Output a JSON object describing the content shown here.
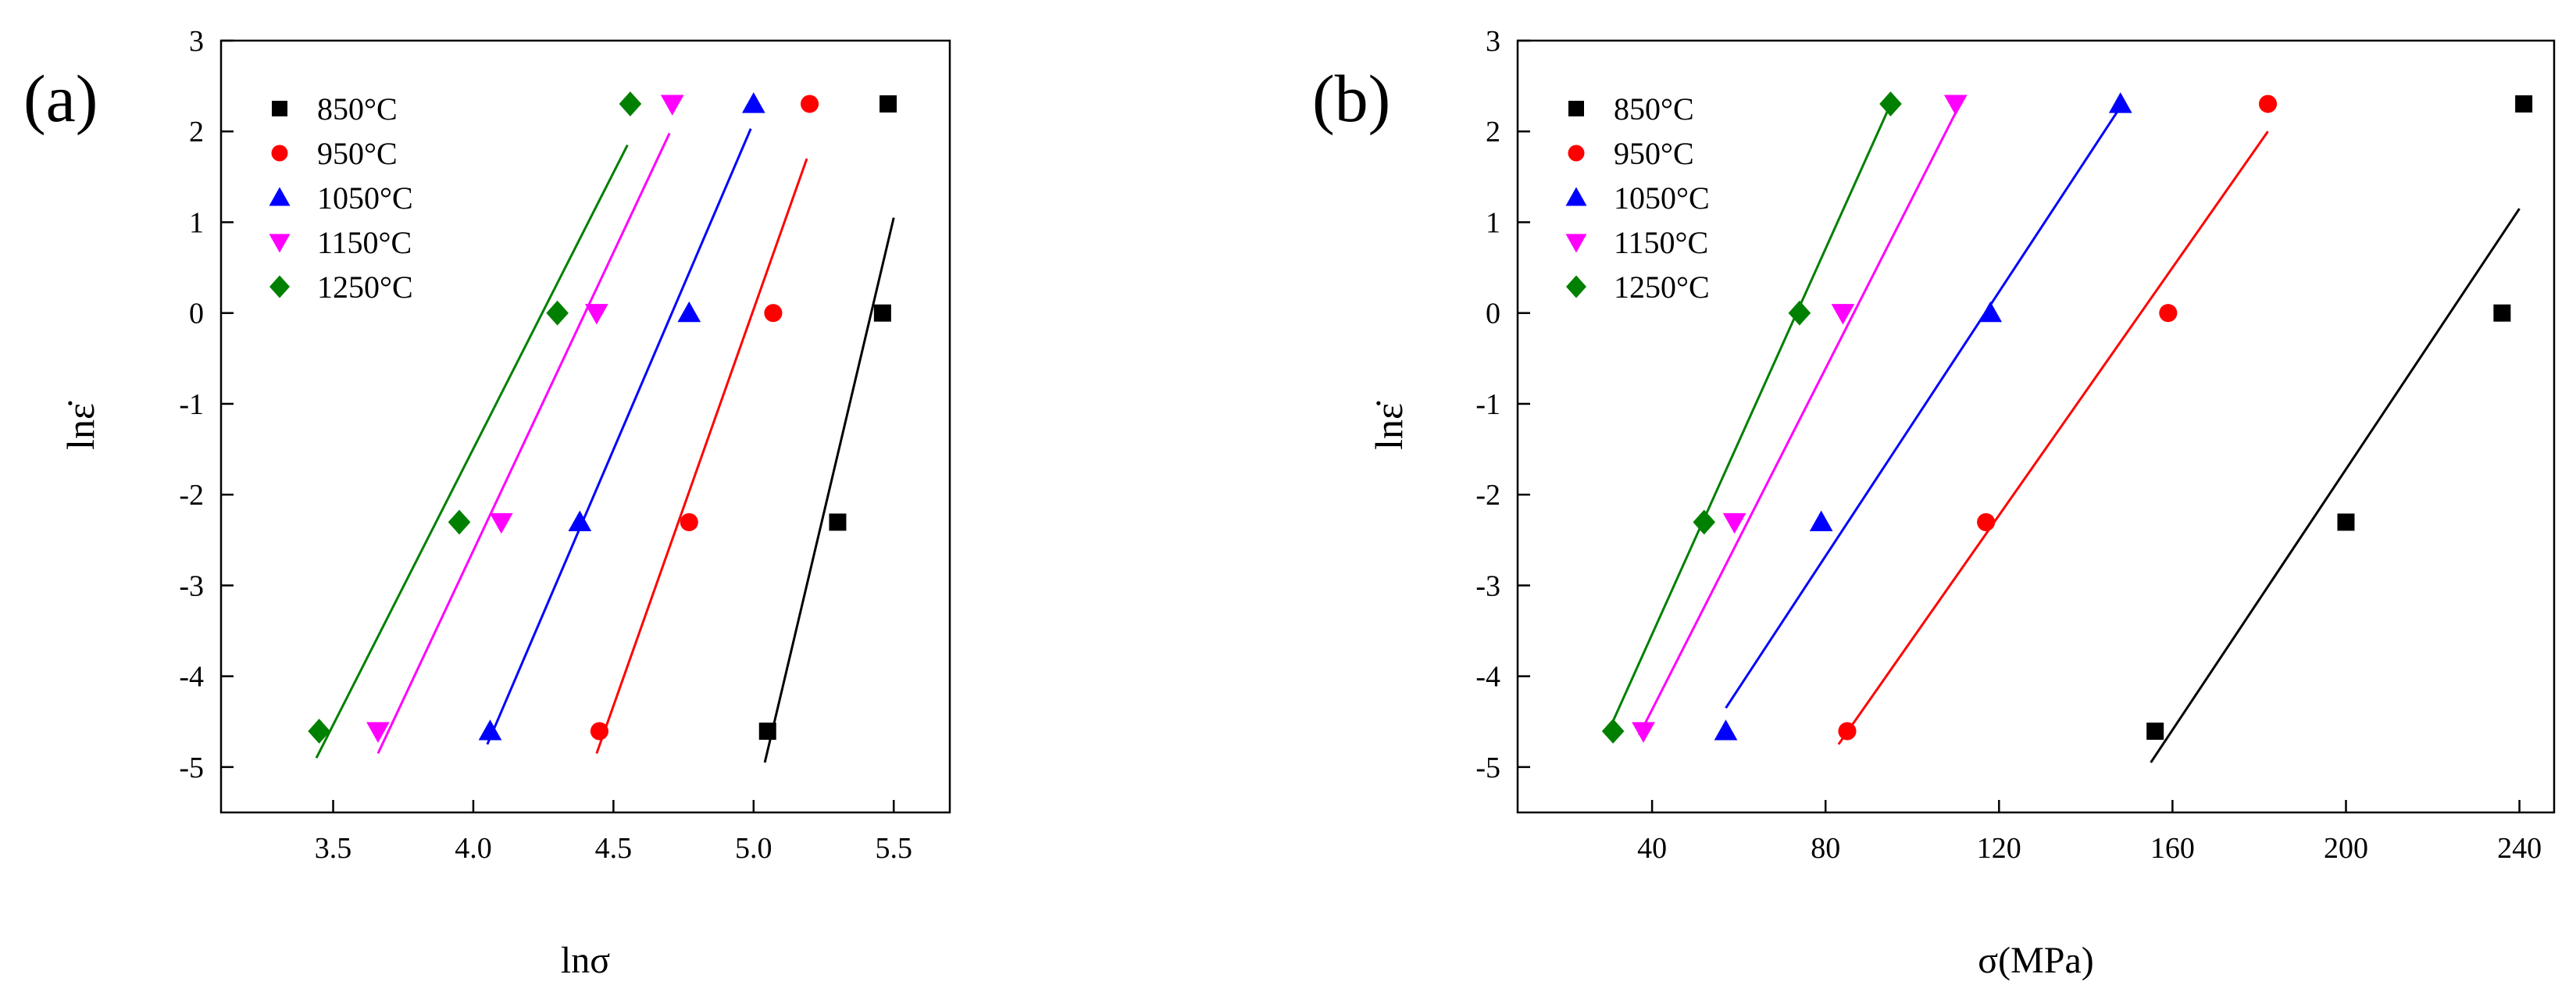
{
  "chart_data": [
    {
      "type": "scatter",
      "panel_label": "(a)",
      "xlabel": "lnσ",
      "ylabel": "lnε̇",
      "xlim": [
        3.1,
        5.7
      ],
      "ylim": [
        -5.5,
        3
      ],
      "xticks": [
        3.5,
        4.0,
        4.5,
        5.0,
        5.5
      ],
      "xtick_labels": [
        "3.5",
        "4.0",
        "4.5",
        "5.0",
        "5.5"
      ],
      "yticks": [
        -5,
        -4,
        -3,
        -2,
        -1,
        0,
        1,
        2,
        3
      ],
      "ytick_labels": [
        "-5",
        "-4",
        "-3",
        "-2",
        "-1",
        "0",
        "1",
        "2",
        "3"
      ],
      "legend_position": "top-left",
      "series": [
        {
          "name": "850°C",
          "marker": "square",
          "color": "#000000",
          "points": [
            [
              5.05,
              -4.605
            ],
            [
              5.3,
              -2.303
            ],
            [
              5.46,
              0
            ],
            [
              5.48,
              2.303
            ]
          ],
          "fit": [
            [
              5.04,
              -4.95
            ],
            [
              5.5,
              1.05
            ]
          ]
        },
        {
          "name": "950°C",
          "marker": "circle",
          "color": "#ff0000",
          "points": [
            [
              4.45,
              -4.605
            ],
            [
              4.77,
              -2.303
            ],
            [
              5.07,
              0
            ],
            [
              5.2,
              2.303
            ]
          ],
          "fit": [
            [
              4.44,
              -4.85
            ],
            [
              5.19,
              1.7
            ]
          ]
        },
        {
          "name": "1050°C",
          "marker": "triangle-up",
          "color": "#0000ff",
          "points": [
            [
              4.06,
              -4.605
            ],
            [
              4.38,
              -2.303
            ],
            [
              4.77,
              0
            ],
            [
              5.0,
              2.303
            ]
          ],
          "fit": [
            [
              4.05,
              -4.75
            ],
            [
              4.99,
              2.03
            ]
          ]
        },
        {
          "name": "1150°C",
          "marker": "triangle-down",
          "color": "#ff00ff",
          "points": [
            [
              3.66,
              -4.605
            ],
            [
              4.1,
              -2.303
            ],
            [
              4.44,
              0
            ],
            [
              4.71,
              2.303
            ]
          ],
          "fit": [
            [
              3.66,
              -4.85
            ],
            [
              4.7,
              1.98
            ]
          ]
        },
        {
          "name": "1250°C",
          "marker": "diamond",
          "color": "#008000",
          "points": [
            [
              3.45,
              -4.605
            ],
            [
              3.95,
              -2.303
            ],
            [
              4.3,
              0
            ],
            [
              4.56,
              2.303
            ]
          ],
          "fit": [
            [
              3.44,
              -4.9
            ],
            [
              4.55,
              1.85
            ]
          ]
        }
      ]
    },
    {
      "type": "scatter",
      "panel_label": "(b)",
      "xlabel": "σ(MPa)",
      "ylabel": "lnε̇",
      "xlim": [
        9,
        248
      ],
      "ylim": [
        -5.5,
        3
      ],
      "xticks": [
        40,
        80,
        120,
        160,
        200,
        240
      ],
      "xtick_labels": [
        "40",
        "80",
        "120",
        "160",
        "200",
        "240"
      ],
      "yticks": [
        -5,
        -4,
        -3,
        -2,
        -1,
        0,
        1,
        2,
        3
      ],
      "ytick_labels": [
        "-5",
        "-4",
        "-3",
        "-2",
        "-1",
        "0",
        "1",
        "2",
        "3"
      ],
      "legend_position": "top-left",
      "series": [
        {
          "name": "850°C",
          "marker": "square",
          "color": "#000000",
          "points": [
            [
              156,
              -4.605
            ],
            [
              200,
              -2.303
            ],
            [
              236,
              0
            ],
            [
              241,
              2.303
            ]
          ],
          "fit": [
            [
              155,
              -4.95
            ],
            [
              240,
              1.15
            ]
          ]
        },
        {
          "name": "950°C",
          "marker": "circle",
          "color": "#ff0000",
          "points": [
            [
              85,
              -4.605
            ],
            [
              117,
              -2.303
            ],
            [
              159,
              0
            ],
            [
              182,
              2.303
            ]
          ],
          "fit": [
            [
              83,
              -4.75
            ],
            [
              182,
              2.0
            ]
          ]
        },
        {
          "name": "1050°C",
          "marker": "triangle-up",
          "color": "#0000ff",
          "points": [
            [
              57,
              -4.605
            ],
            [
              79,
              -2.303
            ],
            [
              118,
              0
            ],
            [
              148,
              2.303
            ]
          ],
          "fit": [
            [
              57,
              -4.35
            ],
            [
              148,
              2.27
            ]
          ]
        },
        {
          "name": "1150°C",
          "marker": "triangle-down",
          "color": "#ff00ff",
          "points": [
            [
              38,
              -4.605
            ],
            [
              59,
              -2.303
            ],
            [
              84,
              0
            ],
            [
              110,
              2.303
            ]
          ],
          "fit": [
            [
              37,
              -4.65
            ],
            [
              111,
              2.3
            ]
          ]
        },
        {
          "name": "1250°C",
          "marker": "diamond",
          "color": "#008000",
          "points": [
            [
              31,
              -4.605
            ],
            [
              52,
              -2.303
            ],
            [
              74,
              0
            ],
            [
              95,
              2.303
            ]
          ],
          "fit": [
            [
              30,
              -4.6
            ],
            [
              95,
              2.3
            ]
          ]
        }
      ]
    }
  ]
}
